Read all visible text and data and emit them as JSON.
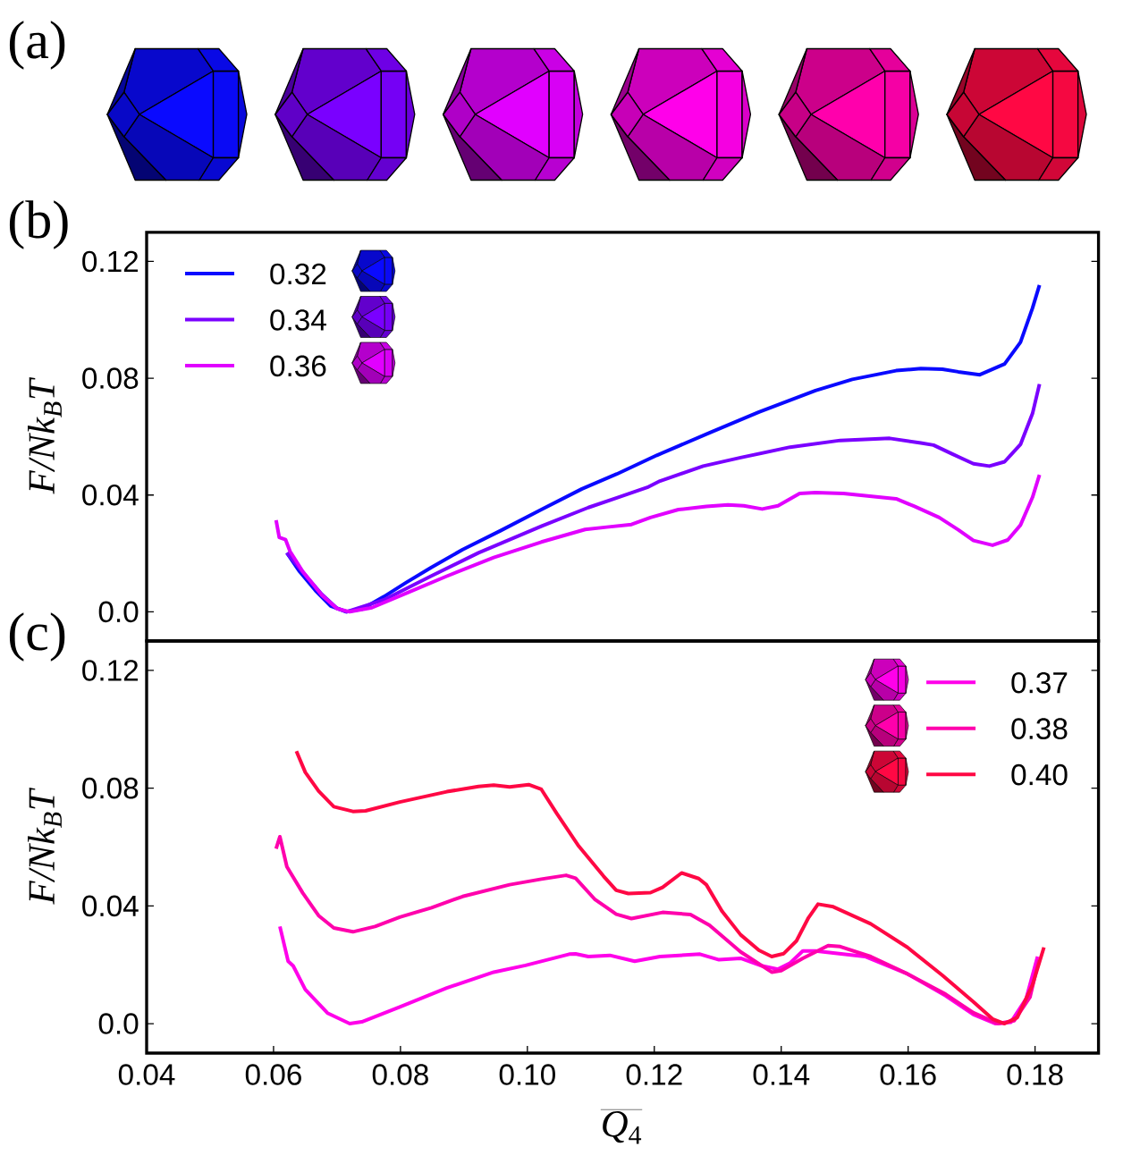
{
  "chart_data": [
    {
      "type": "line",
      "title": "(b)",
      "annotations": [
        "(a)"
      ],
      "ylabel": "F/Nk$_{B}$T",
      "xlim": [
        0.04,
        0.19
      ],
      "ylim": [
        -0.01,
        0.13
      ],
      "yticks": [
        {
          "value": 0,
          "label": "0.0"
        },
        0.04,
        0.08,
        0.12
      ],
      "tick_labels": "y",
      "legend": "top left",
      "series": [
        {
          "name": "0.32",
          "color": "#0a0aff",
          "x": [
            0.0621,
            0.0641,
            0.0666,
            0.069,
            0.0715,
            0.0739,
            0.0774,
            0.0809,
            0.0848,
            0.0898,
            0.0957,
            0.1022,
            0.1086,
            0.1141,
            0.1204,
            0.1287,
            0.1365,
            0.1454,
            0.1512,
            0.1581,
            0.162,
            0.1654,
            0.1679,
            0.1713,
            0.1752,
            0.1777,
            0.1796,
            0.1807
          ],
          "values": [
            0.0202,
            0.0138,
            0.0073,
            0.002,
            0.0,
            0.0009,
            0.0052,
            0.01,
            0.0151,
            0.0213,
            0.0277,
            0.035,
            0.0421,
            0.0472,
            0.0536,
            0.0613,
            0.0684,
            0.0758,
            0.0796,
            0.0826,
            0.0833,
            0.0831,
            0.0822,
            0.0812,
            0.0849,
            0.0923,
            0.104,
            0.1119
          ]
        },
        {
          "name": "0.34",
          "color": "#7a00ff",
          "x": [
            0.0621,
            0.0646,
            0.0676,
            0.07,
            0.0715,
            0.0774,
            0.0848,
            0.0923,
            0.1022,
            0.1096,
            0.1141,
            0.1189,
            0.1209,
            0.1277,
            0.1336,
            0.1414,
            0.1493,
            0.1571,
            0.162,
            0.164,
            0.1669,
            0.1703,
            0.1728,
            0.1752,
            0.1777,
            0.1796,
            0.1807
          ],
          "values": [
            0.0202,
            0.0136,
            0.006,
            0.0012,
            0.0,
            0.0041,
            0.0122,
            0.0202,
            0.0293,
            0.0357,
            0.039,
            0.0426,
            0.0448,
            0.0499,
            0.0528,
            0.0564,
            0.0587,
            0.0594,
            0.0578,
            0.0571,
            0.0541,
            0.0507,
            0.0499,
            0.0514,
            0.0573,
            0.0679,
            0.078
          ]
        },
        {
          "name": "0.36",
          "color": "#e100ff",
          "x": [
            0.0604,
            0.0609,
            0.0619,
            0.0626,
            0.0646,
            0.0676,
            0.07,
            0.072,
            0.0755,
            0.0814,
            0.0873,
            0.0947,
            0.1022,
            0.1091,
            0.1125,
            0.1164,
            0.1194,
            0.1238,
            0.1282,
            0.1316,
            0.1341,
            0.137,
            0.1395,
            0.1429,
            0.1454,
            0.1498,
            0.1581,
            0.161,
            0.1649,
            0.1679,
            0.1703,
            0.1733,
            0.1757,
            0.1777,
            0.1796,
            0.1807
          ],
          "values": [
            0.0314,
            0.0255,
            0.0247,
            0.0207,
            0.0138,
            0.0057,
            0.0011,
            0.0,
            0.0014,
            0.0068,
            0.0122,
            0.0186,
            0.0239,
            0.0282,
            0.029,
            0.0299,
            0.0323,
            0.035,
            0.0361,
            0.0366,
            0.0363,
            0.0352,
            0.0363,
            0.0405,
            0.0408,
            0.0405,
            0.0387,
            0.0361,
            0.0323,
            0.0281,
            0.0244,
            0.0228,
            0.0246,
            0.0297,
            0.0392,
            0.0469
          ]
        }
      ]
    },
    {
      "type": "line",
      "title": "(c)",
      "xlabel": "*Q*$_{4}$",
      "ylabel": "F/Nk$_{B}$T",
      "xlim": [
        0.04,
        0.19
      ],
      "ylim": [
        -0.01,
        0.13
      ],
      "xticks": [
        0.04,
        0.06,
        0.08,
        {
          "value": 0.1,
          "label": "0.10"
        },
        0.12,
        0.14,
        0.16,
        0.18
      ],
      "yticks": [
        {
          "value": 0,
          "label": "0.0"
        },
        0.04,
        0.08,
        0.12
      ],
      "legend": "top right",
      "series": [
        {
          "name": "0.37",
          "color": "#ff00ea",
          "x": [
            0.061,
            0.0623,
            0.0631,
            0.065,
            0.0685,
            0.072,
            0.0739,
            0.0799,
            0.0873,
            0.0947,
            0.0997,
            0.1066,
            0.1076,
            0.1096,
            0.113,
            0.1169,
            0.1209,
            0.1272,
            0.1302,
            0.1336,
            0.137,
            0.1395,
            0.1414,
            0.1434,
            0.1454,
            0.1532,
            0.1599,
            0.1659,
            0.1703,
            0.1738,
            0.1762,
            0.1786,
            0.1804
          ],
          "values": [
            0.033,
            0.0212,
            0.0196,
            0.0116,
            0.0036,
            0.0,
            0.0006,
            0.0057,
            0.0121,
            0.0175,
            0.0198,
            0.0236,
            0.0237,
            0.0228,
            0.0232,
            0.0212,
            0.0228,
            0.0236,
            0.0217,
            0.0222,
            0.0196,
            0.0185,
            0.0206,
            0.0247,
            0.0247,
            0.0228,
            0.0169,
            0.0095,
            0.0031,
            0.0,
            0.0005,
            0.0085,
            0.0228
          ]
        },
        {
          "name": "0.38",
          "color": "#ff00ac",
          "x": [
            0.0604,
            0.061,
            0.0621,
            0.0646,
            0.0671,
            0.0695,
            0.0725,
            0.076,
            0.0799,
            0.0849,
            0.0898,
            0.0972,
            0.1022,
            0.1061,
            0.1076,
            0.1106,
            0.114,
            0.1164,
            0.1213,
            0.1257,
            0.1287,
            0.1336,
            0.1385,
            0.14,
            0.1434,
            0.1474,
            0.1493,
            0.1541,
            0.1599,
            0.1659,
            0.1703,
            0.1742,
            0.1767,
            0.1792,
            0.1806
          ],
          "values": [
            0.0594,
            0.0635,
            0.0533,
            0.0444,
            0.0367,
            0.0325,
            0.0312,
            0.033,
            0.0362,
            0.0394,
            0.0432,
            0.0472,
            0.0491,
            0.0504,
            0.0494,
            0.0423,
            0.0372,
            0.0357,
            0.0378,
            0.0371,
            0.0334,
            0.0244,
            0.0175,
            0.018,
            0.0222,
            0.0265,
            0.0262,
            0.0228,
            0.0169,
            0.01,
            0.0037,
            0.0,
            0.001,
            0.009,
            0.0217
          ]
        },
        {
          "name": "0.40",
          "color": "#ff0844",
          "x": [
            0.0636,
            0.065,
            0.0671,
            0.0695,
            0.0725,
            0.0745,
            0.0799,
            0.0873,
            0.0923,
            0.0947,
            0.0972,
            0.1002,
            0.1022,
            0.1046,
            0.1081,
            0.112,
            0.114,
            0.1159,
            0.1194,
            0.1213,
            0.1243,
            0.127,
            0.1282,
            0.1307,
            0.1336,
            0.1365,
            0.1385,
            0.1404,
            0.1424,
            0.1443,
            0.1458,
            0.1482,
            0.1541,
            0.1599,
            0.1654,
            0.1703,
            0.1733,
            0.1752,
            0.1772,
            0.1796,
            0.1814
          ],
          "values": [
            0.0926,
            0.0854,
            0.079,
            0.0737,
            0.0721,
            0.0723,
            0.0753,
            0.0788,
            0.0806,
            0.081,
            0.0804,
            0.0812,
            0.0796,
            0.0715,
            0.0603,
            0.0501,
            0.0453,
            0.0442,
            0.0445,
            0.0463,
            0.0512,
            0.0493,
            0.0472,
            0.0381,
            0.0302,
            0.0249,
            0.0228,
            0.0238,
            0.0281,
            0.036,
            0.0406,
            0.0397,
            0.0339,
            0.0259,
            0.0164,
            0.0074,
            0.0016,
            0.0,
            0.0021,
            0.0132,
            0.0259
          ]
        }
      ]
    }
  ]
}
